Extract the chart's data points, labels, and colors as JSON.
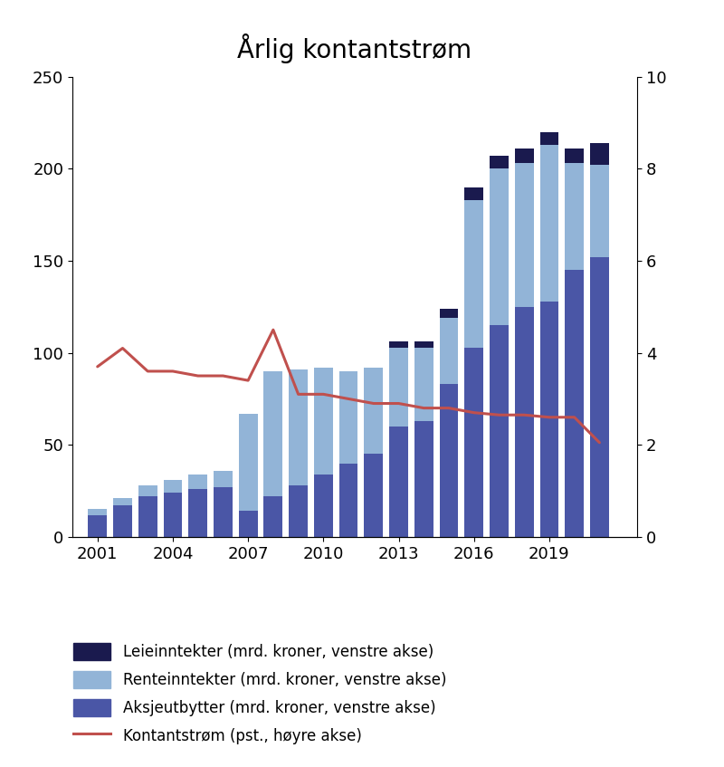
{
  "title": "Årlig kontantstrøm",
  "years": [
    2001,
    2002,
    2003,
    2004,
    2005,
    2006,
    2007,
    2008,
    2009,
    2010,
    2011,
    2012,
    2013,
    2014,
    2015,
    2016,
    2017,
    2018,
    2019,
    2020,
    2021
  ],
  "aksjeutbytter": [
    12,
    17,
    22,
    24,
    26,
    27,
    14,
    22,
    28,
    34,
    40,
    45,
    60,
    63,
    83,
    103,
    115,
    125,
    128,
    145,
    152
  ],
  "renteinntekter": [
    3,
    4,
    6,
    7,
    8,
    9,
    53,
    68,
    63,
    58,
    50,
    47,
    43,
    40,
    36,
    80,
    85,
    78,
    85,
    58,
    50
  ],
  "leieinntekter": [
    0,
    0,
    0,
    0,
    0,
    0,
    0,
    0,
    0,
    0,
    0,
    0,
    3,
    3,
    5,
    7,
    7,
    8,
    7,
    8,
    12
  ],
  "kontantstrom": [
    3.7,
    4.1,
    3.6,
    3.6,
    3.5,
    3.5,
    3.4,
    4.5,
    3.1,
    3.1,
    3.0,
    2.9,
    2.9,
    2.8,
    2.8,
    2.7,
    2.65,
    2.65,
    2.6,
    2.6,
    2.05
  ],
  "color_aksjeutbytter": "#4a56a6",
  "color_renteinntekter": "#92b4d7",
  "color_leieinntekter": "#1a1a4e",
  "color_line": "#c0504d",
  "ylim_left": [
    0,
    250
  ],
  "ylim_right": [
    0,
    10
  ],
  "yticks_left": [
    0,
    50,
    100,
    150,
    200,
    250
  ],
  "yticks_right": [
    0,
    2,
    4,
    6,
    8,
    10
  ],
  "xticks": [
    2001,
    2004,
    2007,
    2010,
    2013,
    2016,
    2019
  ],
  "legend_labels": [
    "Leieinntekter (mrd. kroner, venstre akse)",
    "Renteinntekter (mrd. kroner, venstre akse)",
    "Aksjeutbytter (mrd. kroner, venstre akse)",
    "Kontantstrøm (pst., høyre akse)"
  ]
}
